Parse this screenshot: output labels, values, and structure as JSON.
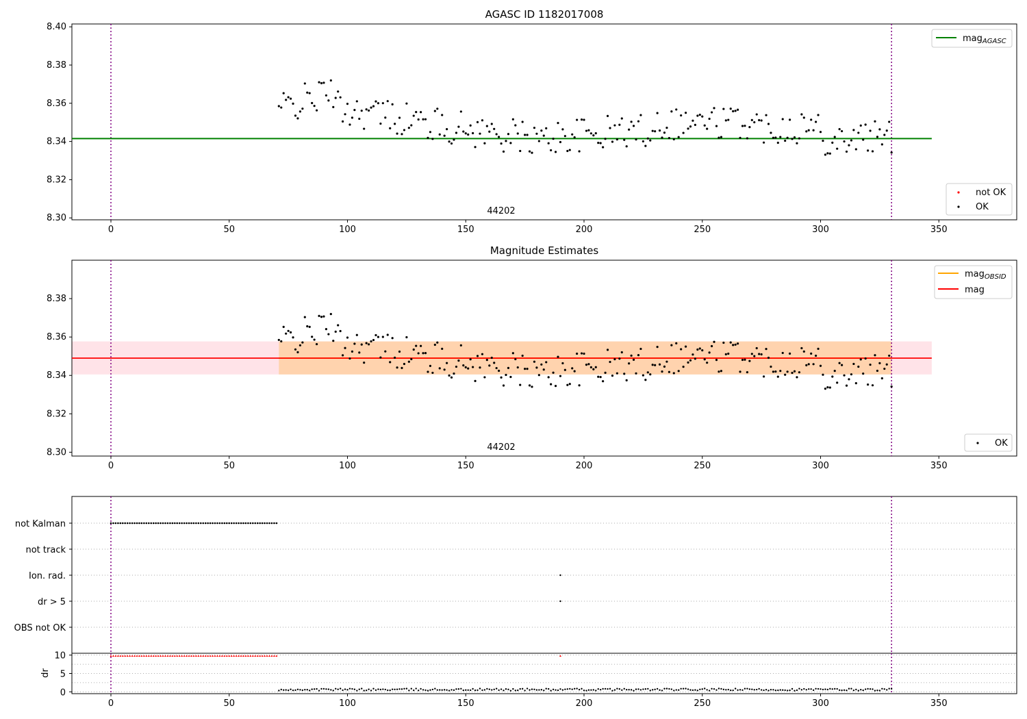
{
  "chart_data": [
    {
      "type": "scatter",
      "title": "AGASC ID 1182017008",
      "xlabel": "",
      "ylabel": "",
      "xlim": [
        -16.5,
        383
      ],
      "ylim": [
        8.299,
        8.4015
      ],
      "xticks": [
        "0",
        "50",
        "100",
        "150",
        "200",
        "250",
        "300",
        "350"
      ],
      "yticks": [
        "8.30",
        "8.32",
        "8.34",
        "8.36",
        "8.38",
        "8.40"
      ],
      "annotation": {
        "text": "44202",
        "x": 165,
        "y": 8.303
      },
      "vlines": [
        0,
        330
      ],
      "hline": {
        "name": "mag_AGASC",
        "y": 8.3415,
        "x_range": [
          -16.5,
          347
        ],
        "color": "#008000"
      },
      "legend_upper": {
        "placement": "upper-right",
        "entries": [
          {
            "label": "mag",
            "sub": "AGASC",
            "color": "#008000"
          }
        ]
      },
      "legend_lower": {
        "placement": "lower-right",
        "entries": [
          {
            "label": "not OK",
            "color": "#ff0000"
          },
          {
            "label": "OK",
            "color": "#000000"
          }
        ]
      },
      "grid": false
    },
    {
      "type": "scatter",
      "title": "Magnitude Estimates",
      "xlabel": "",
      "ylabel": "",
      "xlim": [
        -16.5,
        383
      ],
      "ylim": [
        8.298,
        8.4
      ],
      "xticks": [
        "0",
        "50",
        "100",
        "150",
        "200",
        "250",
        "300",
        "350"
      ],
      "yticks": [
        "8.30",
        "8.32",
        "8.34",
        "8.36",
        "8.38"
      ],
      "annotation": {
        "text": "44202",
        "x": 165,
        "y": 8.302
      },
      "vlines": [
        0,
        330
      ],
      "mag": {
        "name": "mag",
        "y": 8.349,
        "band": [
          8.3405,
          8.3577
        ],
        "color": "#ff0000"
      },
      "mag_obsid": {
        "name": "mag_OBSID",
        "y": 8.349,
        "band": [
          8.3405,
          8.3577
        ],
        "color": "#ffa500"
      },
      "legend_upper": {
        "placement": "upper-right",
        "entries": [
          {
            "label": "mag",
            "sub": "OBSID",
            "color": "#ffa500"
          },
          {
            "label": "mag",
            "sub": "",
            "color": "#ff0000"
          }
        ]
      },
      "legend_lower": {
        "placement": "lower-right",
        "entries": [
          {
            "label": "OK",
            "color": "#000000"
          }
        ]
      },
      "grid": false
    },
    {
      "type": "scatter",
      "title": "",
      "xlim": [
        -16.5,
        383
      ],
      "categories": [
        "not Kalman",
        "not track",
        "Ion. rad.",
        "dr > 5",
        "OBS not OK"
      ],
      "flags": [
        {
          "category": "not Kalman",
          "x_from": 0,
          "x_to": 70
        },
        {
          "category": "Ion. rad.",
          "x": 190
        },
        {
          "category": "dr > 5",
          "x": 190
        }
      ],
      "vlines": [
        0,
        330
      ],
      "grid": "horizontal-dotted"
    },
    {
      "type": "scatter",
      "title": "",
      "xlabel": "",
      "ylabel": "dr",
      "xlim": [
        -16.5,
        383
      ],
      "ylim": [
        -0.5,
        10.5
      ],
      "xticks": [
        "0",
        "50",
        "100",
        "150",
        "200",
        "250",
        "300",
        "350"
      ],
      "yticks": [
        "0",
        "5",
        "10"
      ],
      "not_ok_points": {
        "x_from": 0,
        "x_to": 70,
        "y": 9.8,
        "extra": [
          {
            "x": 190,
            "y": 9.8
          }
        ]
      },
      "ok_points": {
        "x_from": 71,
        "x_to": 330
      },
      "vlines": [
        0,
        330
      ],
      "grid": "horizontal-dotted"
    }
  ]
}
